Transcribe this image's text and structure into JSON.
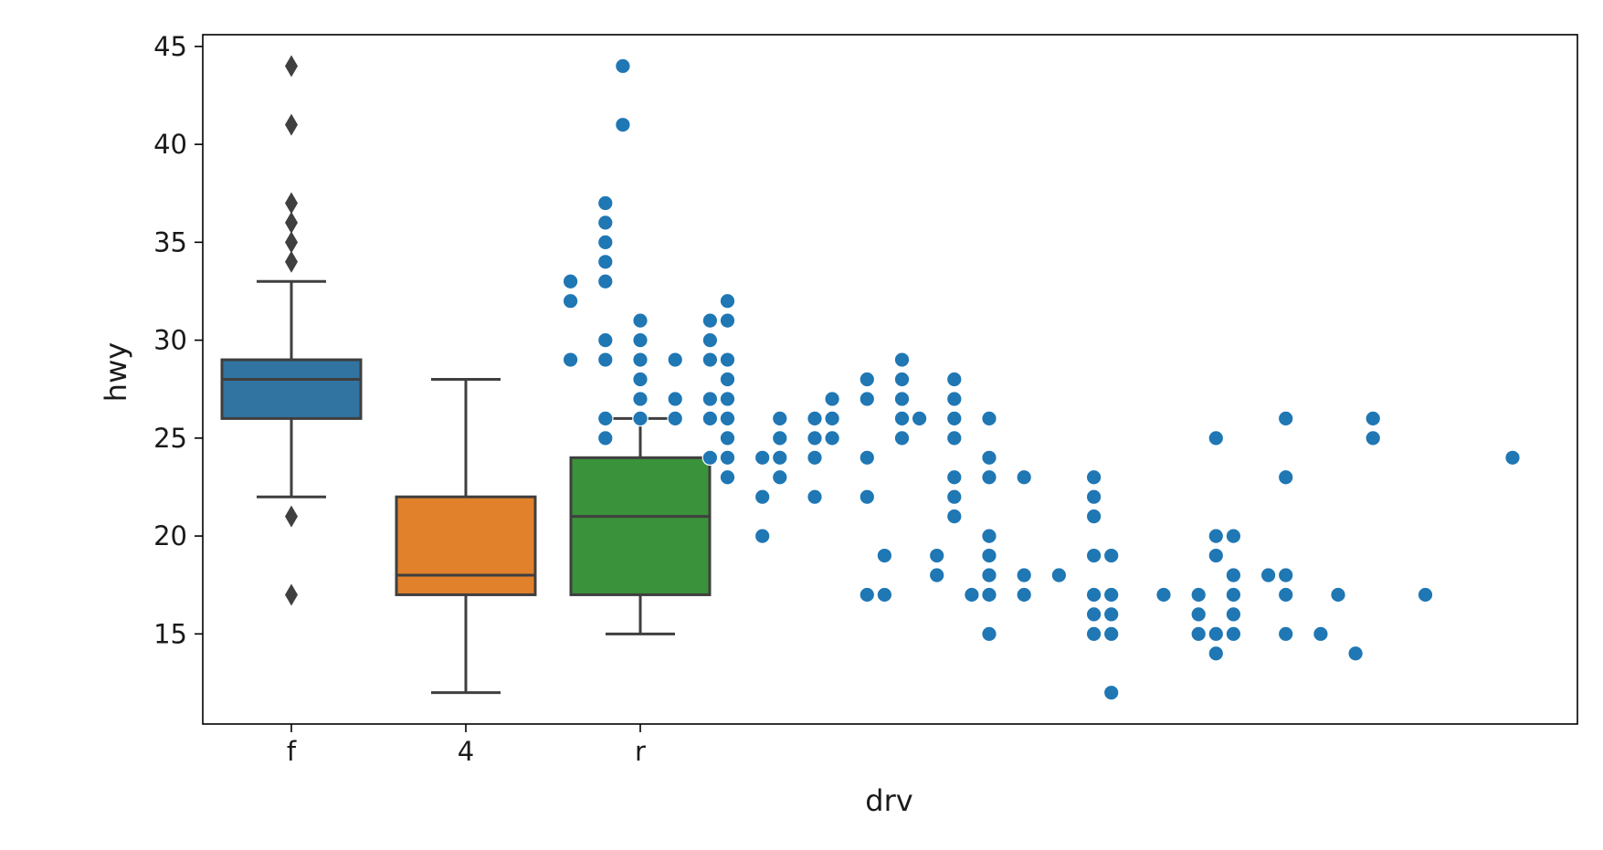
{
  "chart_data": {
    "type": "box",
    "xlabel": "drv",
    "ylabel": "hwy",
    "categories": [
      "f",
      "4",
      "r"
    ],
    "ylim": [
      10.4,
      45.6
    ],
    "y_ticks": [
      15,
      20,
      25,
      30,
      35,
      40,
      45
    ],
    "grid": false,
    "boxes": [
      {
        "category": "f",
        "color": "#3274a1",
        "whisker_low": 22,
        "q1": 26,
        "median": 28,
        "q3": 29,
        "whisker_high": 33,
        "outliers": [
          17,
          21,
          34,
          35,
          36,
          37,
          41,
          44
        ]
      },
      {
        "category": "4",
        "color": "#e1812c",
        "whisker_low": 12,
        "q1": 17,
        "median": 18,
        "q3": 22,
        "whisker_high": 28,
        "outliers": []
      },
      {
        "category": "r",
        "color": "#3a923a",
        "whisker_low": 15,
        "q1": 17,
        "median": 21,
        "q3": 24,
        "whisker_high": 26,
        "outliers": []
      }
    ],
    "scatter_series": {
      "color": "#1f77b4",
      "points": [
        [
          1.6,
          33
        ],
        [
          1.6,
          32
        ],
        [
          1.6,
          29
        ],
        [
          1.8,
          37
        ],
        [
          1.8,
          36
        ],
        [
          1.8,
          35
        ],
        [
          1.8,
          34
        ],
        [
          1.8,
          33
        ],
        [
          1.8,
          30
        ],
        [
          1.8,
          29
        ],
        [
          1.8,
          26
        ],
        [
          1.8,
          25
        ],
        [
          1.9,
          44
        ],
        [
          1.9,
          41
        ],
        [
          2.0,
          31
        ],
        [
          2.0,
          30
        ],
        [
          2.0,
          29
        ],
        [
          2.0,
          28
        ],
        [
          2.0,
          27
        ],
        [
          2.0,
          26
        ],
        [
          2.2,
          29
        ],
        [
          2.2,
          27
        ],
        [
          2.2,
          26
        ],
        [
          2.4,
          31
        ],
        [
          2.4,
          30
        ],
        [
          2.4,
          29
        ],
        [
          2.4,
          27
        ],
        [
          2.4,
          26
        ],
        [
          2.4,
          24
        ],
        [
          2.5,
          32
        ],
        [
          2.5,
          31
        ],
        [
          2.5,
          29
        ],
        [
          2.5,
          28
        ],
        [
          2.5,
          27
        ],
        [
          2.5,
          26
        ],
        [
          2.5,
          25
        ],
        [
          2.5,
          24
        ],
        [
          2.5,
          23
        ],
        [
          2.7,
          24
        ],
        [
          2.7,
          22
        ],
        [
          2.7,
          20
        ],
        [
          2.8,
          26
        ],
        [
          2.8,
          25
        ],
        [
          2.8,
          24
        ],
        [
          2.8,
          23
        ],
        [
          3.0,
          26
        ],
        [
          3.0,
          25
        ],
        [
          3.0,
          24
        ],
        [
          3.0,
          22
        ],
        [
          3.1,
          27
        ],
        [
          3.1,
          26
        ],
        [
          3.1,
          25
        ],
        [
          3.3,
          28
        ],
        [
          3.3,
          27
        ],
        [
          3.3,
          24
        ],
        [
          3.3,
          22
        ],
        [
          3.3,
          17
        ],
        [
          3.4,
          19
        ],
        [
          3.4,
          17
        ],
        [
          3.5,
          29
        ],
        [
          3.5,
          28
        ],
        [
          3.5,
          27
        ],
        [
          3.5,
          26
        ],
        [
          3.5,
          25
        ],
        [
          3.6,
          26
        ],
        [
          3.7,
          19
        ],
        [
          3.7,
          18
        ],
        [
          3.8,
          28
        ],
        [
          3.8,
          27
        ],
        [
          3.8,
          26
        ],
        [
          3.8,
          25
        ],
        [
          3.8,
          23
        ],
        [
          3.8,
          22
        ],
        [
          3.8,
          21
        ],
        [
          3.9,
          17
        ],
        [
          4.0,
          26
        ],
        [
          4.0,
          24
        ],
        [
          4.0,
          23
        ],
        [
          4.0,
          20
        ],
        [
          4.0,
          19
        ],
        [
          4.0,
          18
        ],
        [
          4.0,
          17
        ],
        [
          4.0,
          15
        ],
        [
          4.2,
          23
        ],
        [
          4.2,
          18
        ],
        [
          4.2,
          17
        ],
        [
          4.4,
          18
        ],
        [
          4.6,
          23
        ],
        [
          4.6,
          22
        ],
        [
          4.6,
          21
        ],
        [
          4.6,
          19
        ],
        [
          4.6,
          17
        ],
        [
          4.6,
          16
        ],
        [
          4.6,
          15
        ],
        [
          4.7,
          19
        ],
        [
          4.7,
          17
        ],
        [
          4.7,
          16
        ],
        [
          4.7,
          15
        ],
        [
          4.7,
          12
        ],
        [
          5.0,
          17
        ],
        [
          5.2,
          17
        ],
        [
          5.2,
          16
        ],
        [
          5.2,
          15
        ],
        [
          5.3,
          25
        ],
        [
          5.3,
          20
        ],
        [
          5.3,
          19
        ],
        [
          5.3,
          15
        ],
        [
          5.3,
          14
        ],
        [
          5.4,
          20
        ],
        [
          5.4,
          18
        ],
        [
          5.4,
          17
        ],
        [
          5.4,
          16
        ],
        [
          5.4,
          15
        ],
        [
          5.6,
          18
        ],
        [
          5.7,
          26
        ],
        [
          5.7,
          23
        ],
        [
          5.7,
          18
        ],
        [
          5.7,
          17
        ],
        [
          5.7,
          15
        ],
        [
          5.9,
          15
        ],
        [
          6.0,
          17
        ],
        [
          6.1,
          14
        ],
        [
          6.2,
          26
        ],
        [
          6.2,
          25
        ],
        [
          6.5,
          17
        ],
        [
          7.0,
          24
        ]
      ]
    }
  }
}
